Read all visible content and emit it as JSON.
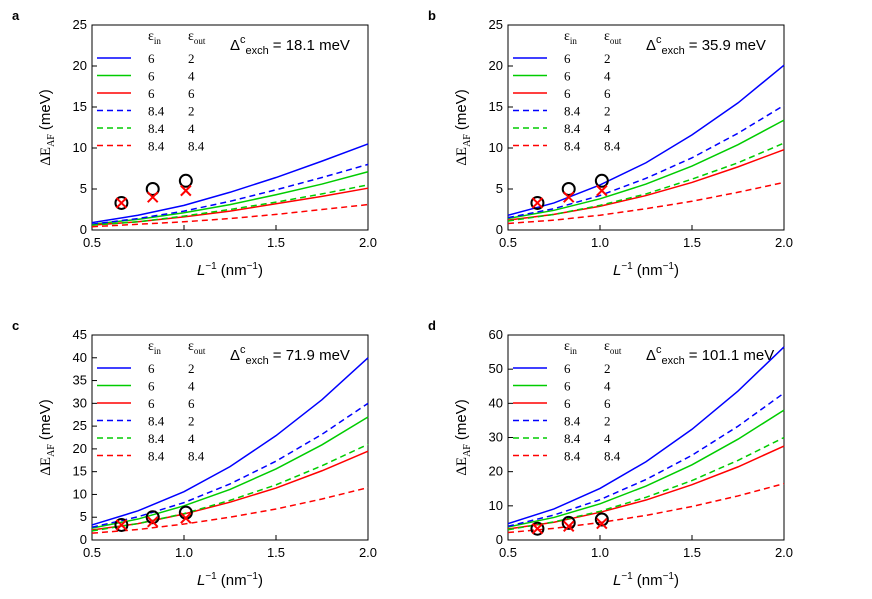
{
  "chart_data": [
    {
      "type": "line",
      "panel": "a",
      "annotation": {
        "symbol": "Δ",
        "sup": "c",
        "sub": "exch",
        "text": "= 18.1 meV"
      },
      "ylabel": {
        "main": "ΔE",
        "sub": "AF",
        "unit": "(meV)"
      },
      "xlabel": {
        "main": "L",
        "sup": "−1",
        "unit": "(nm",
        "unit_sup": "−1",
        "close": ")"
      },
      "legend_header": {
        "symbol": "ε",
        "sub_in": "in",
        "sub_out": "out"
      },
      "xlim": [
        0.5,
        2.0
      ],
      "xticks": [
        0.5,
        {
          "value": 1,
          "label": "1.0"
        },
        1.5,
        {
          "value": 2,
          "label": "2.0"
        }
      ],
      "ylim": [
        0,
        25
      ],
      "yticks": [
        0,
        5,
        10,
        15,
        20,
        25
      ],
      "x": [
        0.5,
        0.75,
        1.0,
        1.25,
        1.5,
        1.75,
        2.0
      ],
      "series": [
        {
          "eps_in": "6",
          "eps_out": "2",
          "color": "#0000ff",
          "dash": false,
          "values": [
            0.9,
            1.8,
            3.0,
            4.6,
            6.4,
            8.4,
            10.5
          ]
        },
        {
          "eps_in": "6",
          "eps_out": "4",
          "color": "#00cc00",
          "dash": false,
          "values": [
            0.7,
            1.3,
            2.1,
            3.1,
            4.3,
            5.6,
            7.1
          ]
        },
        {
          "eps_in": "6",
          "eps_out": "6",
          "color": "#ff0000",
          "dash": false,
          "values": [
            0.6,
            1.0,
            1.6,
            2.3,
            3.2,
            4.1,
            5.1
          ]
        },
        {
          "eps_in": "8.4",
          "eps_out": "2",
          "color": "#0000ff",
          "dash": true,
          "values": [
            0.7,
            1.4,
            2.3,
            3.5,
            4.9,
            6.4,
            8.0
          ]
        },
        {
          "eps_in": "8.4",
          "eps_out": "4",
          "color": "#00cc00",
          "dash": true,
          "values": [
            0.6,
            1.0,
            1.7,
            2.5,
            3.4,
            4.4,
            5.5
          ]
        },
        {
          "eps_in": "8.4",
          "eps_out": "8.4",
          "color": "#ff0000",
          "dash": true,
          "values": [
            0.4,
            0.7,
            1.0,
            1.4,
            1.9,
            2.5,
            3.1
          ]
        }
      ],
      "markers": [
        {
          "marker": "circle",
          "color": "#000000",
          "x": [
            0.66,
            0.83,
            1.01
          ],
          "values": [
            3.3,
            5.0,
            6.0
          ]
        },
        {
          "marker": "cross",
          "color": "#ff0000",
          "x": [
            0.66,
            0.83,
            1.01
          ],
          "values": [
            3.3,
            4.0,
            4.8
          ]
        }
      ]
    },
    {
      "type": "line",
      "panel": "b",
      "annotation": {
        "symbol": "Δ",
        "sup": "c",
        "sub": "exch",
        "text": "= 35.9 meV"
      },
      "ylabel": {
        "main": "ΔE",
        "sub": "AF",
        "unit": "(meV)"
      },
      "xlabel": {
        "main": "L",
        "sup": "−1",
        "unit": "(nm",
        "unit_sup": "−1",
        "close": ")"
      },
      "legend_header": {
        "symbol": "ε",
        "sub_in": "in",
        "sub_out": "out"
      },
      "xlim": [
        0.5,
        2.0
      ],
      "xticks": [
        0.5,
        {
          "value": 1,
          "label": "1.0"
        },
        1.5,
        {
          "value": 2,
          "label": "2.0"
        }
      ],
      "ylim": [
        0,
        25
      ],
      "yticks": [
        0,
        5,
        10,
        15,
        20,
        25
      ],
      "x": [
        0.5,
        0.75,
        1.0,
        1.25,
        1.5,
        1.75,
        2.0
      ],
      "series": [
        {
          "eps_in": "6",
          "eps_out": "2",
          "color": "#0000ff",
          "dash": false,
          "values": [
            1.8,
            3.3,
            5.5,
            8.2,
            11.6,
            15.5,
            20.1
          ]
        },
        {
          "eps_in": "6",
          "eps_out": "4",
          "color": "#00cc00",
          "dash": false,
          "values": [
            1.4,
            2.4,
            3.8,
            5.6,
            7.8,
            10.4,
            13.4
          ]
        },
        {
          "eps_in": "6",
          "eps_out": "6",
          "color": "#ff0000",
          "dash": false,
          "values": [
            1.2,
            1.9,
            2.9,
            4.2,
            5.8,
            7.7,
            9.8
          ]
        },
        {
          "eps_in": "8.4",
          "eps_out": "2",
          "color": "#0000ff",
          "dash": true,
          "values": [
            1.5,
            2.6,
            4.2,
            6.3,
            8.8,
            11.8,
            15.2
          ]
        },
        {
          "eps_in": "8.4",
          "eps_out": "4",
          "color": "#00cc00",
          "dash": true,
          "values": [
            1.1,
            1.9,
            3.0,
            4.4,
            6.2,
            8.2,
            10.6
          ]
        },
        {
          "eps_in": "8.4",
          "eps_out": "8.4",
          "color": "#ff0000",
          "dash": true,
          "values": [
            0.8,
            1.2,
            1.8,
            2.6,
            3.5,
            4.6,
            5.8
          ]
        }
      ],
      "markers": [
        {
          "marker": "circle",
          "color": "#000000",
          "x": [
            0.66,
            0.83,
            1.01
          ],
          "values": [
            3.3,
            5.0,
            6.0
          ]
        },
        {
          "marker": "cross",
          "color": "#ff0000",
          "x": [
            0.66,
            0.83,
            1.01
          ],
          "values": [
            3.3,
            4.0,
            4.8
          ]
        }
      ]
    },
    {
      "type": "line",
      "panel": "c",
      "annotation": {
        "symbol": "Δ",
        "sup": "c",
        "sub": "exch",
        "text": "= 71.9 meV"
      },
      "ylabel": {
        "main": "ΔE",
        "sub": "AF",
        "unit": "(meV)"
      },
      "xlabel": {
        "main": "L",
        "sup": "−1",
        "unit": "(nm",
        "unit_sup": "−1",
        "close": ")"
      },
      "legend_header": {
        "symbol": "ε",
        "sub_in": "in",
        "sub_out": "out"
      },
      "xlim": [
        0.5,
        2.0
      ],
      "xticks": [
        0.5,
        {
          "value": 1,
          "label": "1.0"
        },
        1.5,
        {
          "value": 2,
          "label": "2.0"
        }
      ],
      "ylim": [
        0,
        45
      ],
      "yticks": [
        0,
        5,
        10,
        15,
        20,
        25,
        30,
        35,
        40,
        45
      ],
      "x": [
        0.5,
        0.75,
        1.0,
        1.25,
        1.5,
        1.75,
        2.0
      ],
      "series": [
        {
          "eps_in": "6",
          "eps_out": "2",
          "color": "#0000ff",
          "dash": false,
          "values": [
            3.3,
            6.4,
            10.6,
            16.1,
            22.9,
            30.8,
            40.0
          ]
        },
        {
          "eps_in": "6",
          "eps_out": "4",
          "color": "#00cc00",
          "dash": false,
          "values": [
            2.6,
            4.6,
            7.5,
            11.1,
            15.6,
            20.9,
            27.0
          ]
        },
        {
          "eps_in": "6",
          "eps_out": "6",
          "color": "#ff0000",
          "dash": false,
          "values": [
            2.2,
            3.6,
            5.7,
            8.3,
            11.4,
            15.2,
            19.5
          ]
        },
        {
          "eps_in": "8.4",
          "eps_out": "2",
          "color": "#0000ff",
          "dash": true,
          "values": [
            2.8,
            5.1,
            8.2,
            12.3,
            17.3,
            23.2,
            30.0
          ]
        },
        {
          "eps_in": "8.4",
          "eps_out": "4",
          "color": "#00cc00",
          "dash": true,
          "values": [
            2.0,
            3.6,
            5.8,
            8.7,
            12.1,
            16.3,
            21.0
          ]
        },
        {
          "eps_in": "8.4",
          "eps_out": "8.4",
          "color": "#ff0000",
          "dash": true,
          "values": [
            1.5,
            2.3,
            3.5,
            5.0,
            6.8,
            9.0,
            11.5
          ]
        }
      ],
      "markers": [
        {
          "marker": "circle",
          "color": "#000000",
          "x": [
            0.66,
            0.83,
            1.01
          ],
          "values": [
            3.3,
            5.0,
            6.0
          ]
        },
        {
          "marker": "cross",
          "color": "#ff0000",
          "x": [
            0.66,
            0.83,
            1.01
          ],
          "values": [
            3.3,
            4.0,
            4.8
          ]
        }
      ]
    },
    {
      "type": "line",
      "panel": "d",
      "annotation": {
        "symbol": "Δ",
        "sup": "c",
        "sub": "exch",
        "text": "= 101.1 meV"
      },
      "ylabel": {
        "main": "ΔE",
        "sub": "AF",
        "unit": "(meV)"
      },
      "xlabel": {
        "main": "L",
        "sup": "−1",
        "unit": "(nm",
        "unit_sup": "−1",
        "close": ")"
      },
      "legend_header": {
        "symbol": "ε",
        "sub_in": "in",
        "sub_out": "out"
      },
      "xlim": [
        0.5,
        2.0
      ],
      "xticks": [
        0.5,
        {
          "value": 1,
          "label": "1.0"
        },
        1.5,
        {
          "value": 2,
          "label": "2.0"
        }
      ],
      "ylim": [
        0,
        60
      ],
      "yticks": [
        0,
        10,
        20,
        30,
        40,
        50,
        60
      ],
      "x": [
        0.5,
        0.75,
        1.0,
        1.25,
        1.5,
        1.75,
        2.0
      ],
      "series": [
        {
          "eps_in": "6",
          "eps_out": "2",
          "color": "#0000ff",
          "dash": false,
          "values": [
            4.8,
            9.1,
            15.1,
            22.9,
            32.4,
            43.6,
            56.5
          ]
        },
        {
          "eps_in": "6",
          "eps_out": "4",
          "color": "#00cc00",
          "dash": false,
          "values": [
            3.8,
            6.6,
            10.6,
            15.8,
            22.0,
            29.5,
            38.0
          ]
        },
        {
          "eps_in": "6",
          "eps_out": "6",
          "color": "#ff0000",
          "dash": false,
          "values": [
            3.2,
            5.2,
            8.1,
            11.7,
            16.2,
            21.4,
            27.5
          ]
        },
        {
          "eps_in": "8.4",
          "eps_out": "2",
          "color": "#0000ff",
          "dash": true,
          "values": [
            4.0,
            7.3,
            11.8,
            17.7,
            24.8,
            33.3,
            43.0
          ]
        },
        {
          "eps_in": "8.4",
          "eps_out": "4",
          "color": "#00cc00",
          "dash": true,
          "values": [
            3.0,
            5.3,
            8.4,
            12.5,
            17.4,
            23.3,
            30.0
          ]
        },
        {
          "eps_in": "8.4",
          "eps_out": "8.4",
          "color": "#ff0000",
          "dash": true,
          "values": [
            2.2,
            3.4,
            5.1,
            7.2,
            9.8,
            12.9,
            16.5
          ]
        }
      ],
      "markers": [
        {
          "marker": "circle",
          "color": "#000000",
          "x": [
            0.66,
            0.83,
            1.01
          ],
          "values": [
            3.3,
            5.0,
            6.0
          ]
        },
        {
          "marker": "cross",
          "color": "#ff0000",
          "x": [
            0.66,
            0.83,
            1.01
          ],
          "values": [
            3.3,
            4.0,
            4.8
          ]
        }
      ]
    }
  ]
}
